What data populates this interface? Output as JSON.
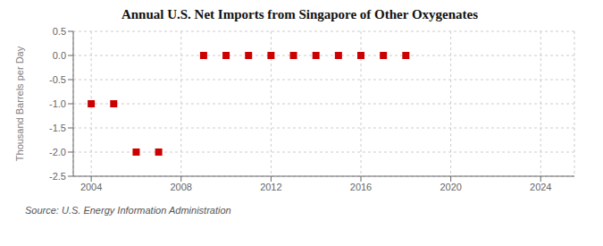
{
  "chart_data": {
    "type": "scatter",
    "title": "Annual U.S. Net Imports from Singapore of Other Oxygenates",
    "ylabel": "Thousand Barrels per Day",
    "annotations": [
      "Source: U.S. Energy Information Administration"
    ],
    "x": [
      2004,
      2005,
      2006,
      2007,
      2009,
      2010,
      2011,
      2012,
      2013,
      2014,
      2015,
      2016,
      2017,
      2018
    ],
    "values": [
      -1.0,
      -1.0,
      -2.0,
      -2.0,
      0.0,
      0.0,
      0.0,
      0.0,
      0.0,
      0.0,
      0.0,
      0.0,
      0.0,
      0.0
    ],
    "color": "#cc0000",
    "marker": "square",
    "xlim": [
      2003.2,
      2025.5
    ],
    "xticks": [
      2004,
      2008,
      2012,
      2016,
      2020,
      2024
    ],
    "ylim": [
      -2.5,
      0.5
    ],
    "yticks": [
      0.5,
      {
        "value": 0,
        "label": "0.0"
      },
      -0.5,
      {
        "value": -1,
        "label": "-1.0"
      },
      -1.5,
      {
        "value": -2,
        "label": "-2.0"
      },
      -2.5
    ],
    "grid": true
  }
}
